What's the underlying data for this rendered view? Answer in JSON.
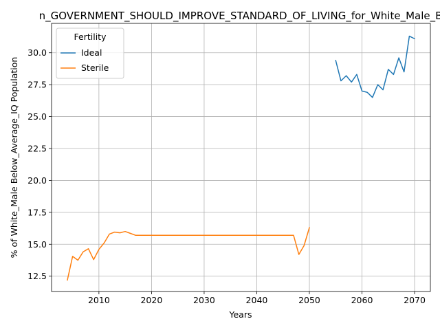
{
  "chart_data": {
    "type": "line",
    "title": "n_GOVERNMENT_SHOULD_IMPROVE_STANDARD_OF_LIVING_for_White_Male_B",
    "xlabel": "Years",
    "ylabel": "% of White_Male Below_Average_IQ Population",
    "xlim": [
      2001,
      2073
    ],
    "ylim": [
      11.3,
      32.3
    ],
    "xticks": [
      2010,
      2020,
      2030,
      2040,
      2050,
      2060,
      2070
    ],
    "yticks": [
      12.5,
      15.0,
      17.5,
      20.0,
      22.5,
      25.0,
      27.5,
      30.0
    ],
    "grid": true,
    "legend": {
      "title": "Fertility",
      "placement": "top-left"
    },
    "series": [
      {
        "name": "Ideal",
        "color": "#1f77b4",
        "x": [
          2055,
          2056,
          2057,
          2058,
          2059,
          2060,
          2061,
          2062,
          2063,
          2064,
          2065,
          2066,
          2067,
          2068,
          2069,
          2070
        ],
        "y": [
          29.4,
          27.8,
          28.2,
          27.7,
          28.3,
          27.0,
          26.9,
          26.5,
          27.5,
          27.1,
          28.7,
          28.3,
          29.6,
          28.5,
          31.3,
          31.1
        ]
      },
      {
        "name": "Sterile",
        "color": "#ff7f0e",
        "x": [
          2004,
          2005,
          2006,
          2007,
          2008,
          2009,
          2010,
          2011,
          2012,
          2013,
          2014,
          2015,
          2016,
          2017,
          2018,
          2019,
          2020,
          2021,
          2022,
          2023,
          2024,
          2025,
          2026,
          2027,
          2028,
          2029,
          2030,
          2031,
          2032,
          2033,
          2034,
          2035,
          2036,
          2037,
          2038,
          2039,
          2040,
          2041,
          2042,
          2043,
          2044,
          2045,
          2046,
          2047,
          2048,
          2049,
          2050
        ],
        "y": [
          12.2,
          14.05,
          13.75,
          14.4,
          14.65,
          13.8,
          14.6,
          15.1,
          15.8,
          15.95,
          15.9,
          16.0,
          15.85,
          15.7,
          15.7,
          15.7,
          15.7,
          15.7,
          15.7,
          15.7,
          15.7,
          15.7,
          15.7,
          15.7,
          15.7,
          15.7,
          15.7,
          15.7,
          15.7,
          15.7,
          15.7,
          15.7,
          15.7,
          15.7,
          15.7,
          15.7,
          15.7,
          15.7,
          15.7,
          15.7,
          15.7,
          15.7,
          15.7,
          15.7,
          14.2,
          14.9,
          16.3
        ]
      }
    ]
  }
}
